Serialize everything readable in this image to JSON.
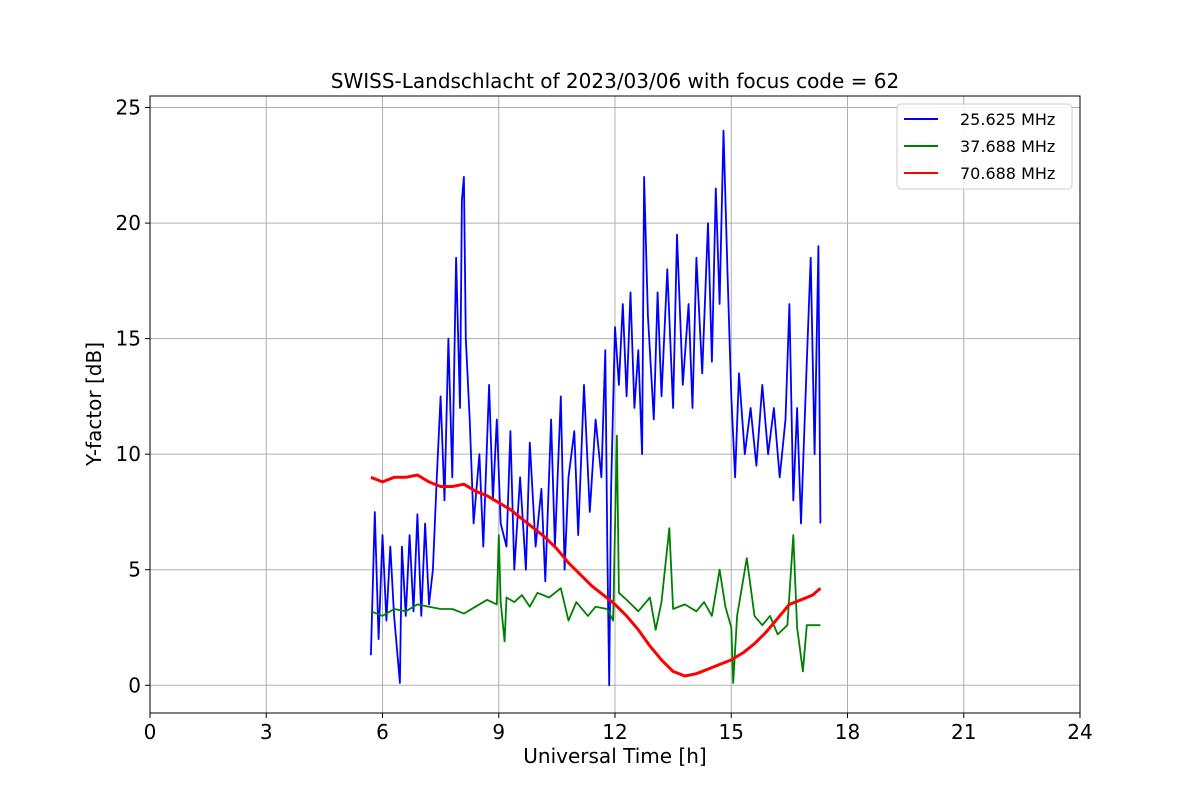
{
  "chart_data": {
    "type": "line",
    "title": "SWISS-Landschlacht of 2023/03/06 with focus code = 62",
    "xlabel": "Universal Time [h]",
    "ylabel": "Y-factor [dB]",
    "xlim": [
      0,
      24
    ],
    "ylim": [
      -1.2,
      25.5
    ],
    "xticks": [
      0,
      3,
      6,
      9,
      12,
      15,
      18,
      21,
      24
    ],
    "xtick_labels": [
      "0",
      "3",
      "6",
      "9",
      "12",
      "15",
      "18",
      "21",
      "24"
    ],
    "yticks": [
      0,
      5,
      10,
      15,
      20,
      25
    ],
    "ytick_labels": [
      "0",
      "5",
      "10",
      "15",
      "20",
      "25"
    ],
    "grid": true,
    "legend_position": "top-right",
    "series": [
      {
        "name": "25.625 MHz",
        "color": "#0000ff",
        "points": [
          [
            5.7,
            1.3
          ],
          [
            5.8,
            7.5
          ],
          [
            5.9,
            2.0
          ],
          [
            6.0,
            6.5
          ],
          [
            6.1,
            2.8
          ],
          [
            6.2,
            6.0
          ],
          [
            6.3,
            3.0
          ],
          [
            6.45,
            0.1
          ],
          [
            6.5,
            6.0
          ],
          [
            6.6,
            3.0
          ],
          [
            6.7,
            6.5
          ],
          [
            6.8,
            3.2
          ],
          [
            6.9,
            7.4
          ],
          [
            7.0,
            3.0
          ],
          [
            7.1,
            7.0
          ],
          [
            7.2,
            3.5
          ],
          [
            7.3,
            5.0
          ],
          [
            7.4,
            9.0
          ],
          [
            7.5,
            12.5
          ],
          [
            7.6,
            8.0
          ],
          [
            7.7,
            15.0
          ],
          [
            7.8,
            9.0
          ],
          [
            7.9,
            18.5
          ],
          [
            8.0,
            12.0
          ],
          [
            8.05,
            21.0
          ],
          [
            8.1,
            22.0
          ],
          [
            8.15,
            15.0
          ],
          [
            8.25,
            11.5
          ],
          [
            8.35,
            7.0
          ],
          [
            8.5,
            10.0
          ],
          [
            8.6,
            6.0
          ],
          [
            8.75,
            13.0
          ],
          [
            8.85,
            8.0
          ],
          [
            8.95,
            11.5
          ],
          [
            9.05,
            7.0
          ],
          [
            9.2,
            6.0
          ],
          [
            9.3,
            11.0
          ],
          [
            9.4,
            5.0
          ],
          [
            9.55,
            9.0
          ],
          [
            9.7,
            5.0
          ],
          [
            9.8,
            10.5
          ],
          [
            9.95,
            6.0
          ],
          [
            10.1,
            8.5
          ],
          [
            10.2,
            4.5
          ],
          [
            10.35,
            11.5
          ],
          [
            10.45,
            6.0
          ],
          [
            10.6,
            12.5
          ],
          [
            10.7,
            5.0
          ],
          [
            10.8,
            9.0
          ],
          [
            10.95,
            11.0
          ],
          [
            11.05,
            6.5
          ],
          [
            11.2,
            13.0
          ],
          [
            11.35,
            7.5
          ],
          [
            11.5,
            11.5
          ],
          [
            11.65,
            9.0
          ],
          [
            11.75,
            14.5
          ],
          [
            11.8,
            6.0
          ],
          [
            11.85,
            0.0
          ],
          [
            11.9,
            8.5
          ],
          [
            12.0,
            15.5
          ],
          [
            12.1,
            13.0
          ],
          [
            12.2,
            16.5
          ],
          [
            12.3,
            12.5
          ],
          [
            12.4,
            17.0
          ],
          [
            12.5,
            12.0
          ],
          [
            12.6,
            14.5
          ],
          [
            12.7,
            10.0
          ],
          [
            12.75,
            22.0
          ],
          [
            12.85,
            16.0
          ],
          [
            13.0,
            11.5
          ],
          [
            13.1,
            17.0
          ],
          [
            13.2,
            12.5
          ],
          [
            13.35,
            18.0
          ],
          [
            13.5,
            12.0
          ],
          [
            13.6,
            19.5
          ],
          [
            13.75,
            13.0
          ],
          [
            13.9,
            16.5
          ],
          [
            14.0,
            12.0
          ],
          [
            14.1,
            18.5
          ],
          [
            14.25,
            13.5
          ],
          [
            14.4,
            20.0
          ],
          [
            14.5,
            14.0
          ],
          [
            14.6,
            21.5
          ],
          [
            14.7,
            16.5
          ],
          [
            14.8,
            24.0
          ],
          [
            14.9,
            18.0
          ],
          [
            15.0,
            12.5
          ],
          [
            15.1,
            9.0
          ],
          [
            15.2,
            13.5
          ],
          [
            15.35,
            10.0
          ],
          [
            15.5,
            12.0
          ],
          [
            15.65,
            9.5
          ],
          [
            15.8,
            13.0
          ],
          [
            15.95,
            10.0
          ],
          [
            16.1,
            12.0
          ],
          [
            16.25,
            9.0
          ],
          [
            16.4,
            11.5
          ],
          [
            16.5,
            16.5
          ],
          [
            16.6,
            8.0
          ],
          [
            16.7,
            12.0
          ],
          [
            16.8,
            7.0
          ],
          [
            16.95,
            14.0
          ],
          [
            17.05,
            18.5
          ],
          [
            17.15,
            10.0
          ],
          [
            17.25,
            19.0
          ],
          [
            17.3,
            7.0
          ]
        ]
      },
      {
        "name": "37.688 MHz",
        "color": "#008000",
        "points": [
          [
            5.7,
            3.2
          ],
          [
            6.0,
            3.0
          ],
          [
            6.3,
            3.3
          ],
          [
            6.6,
            3.2
          ],
          [
            6.9,
            3.5
          ],
          [
            7.2,
            3.4
          ],
          [
            7.5,
            3.3
          ],
          [
            7.8,
            3.3
          ],
          [
            8.1,
            3.1
          ],
          [
            8.4,
            3.4
          ],
          [
            8.7,
            3.7
          ],
          [
            8.95,
            3.5
          ],
          [
            9.0,
            6.5
          ],
          [
            9.05,
            3.6
          ],
          [
            9.15,
            1.9
          ],
          [
            9.2,
            3.8
          ],
          [
            9.4,
            3.6
          ],
          [
            9.6,
            3.9
          ],
          [
            9.8,
            3.4
          ],
          [
            10.0,
            4.0
          ],
          [
            10.3,
            3.8
          ],
          [
            10.6,
            4.2
          ],
          [
            10.8,
            2.8
          ],
          [
            11.0,
            3.6
          ],
          [
            11.3,
            3.0
          ],
          [
            11.5,
            3.4
          ],
          [
            11.8,
            3.3
          ],
          [
            11.95,
            2.8
          ],
          [
            12.05,
            10.8
          ],
          [
            12.1,
            4.0
          ],
          [
            12.3,
            3.7
          ],
          [
            12.6,
            3.2
          ],
          [
            12.9,
            3.8
          ],
          [
            13.05,
            2.4
          ],
          [
            13.2,
            3.6
          ],
          [
            13.4,
            6.8
          ],
          [
            13.5,
            3.3
          ],
          [
            13.8,
            3.5
          ],
          [
            14.1,
            3.2
          ],
          [
            14.3,
            3.6
          ],
          [
            14.5,
            3.0
          ],
          [
            14.7,
            5.0
          ],
          [
            14.85,
            3.4
          ],
          [
            15.0,
            2.5
          ],
          [
            15.05,
            0.1
          ],
          [
            15.15,
            3.0
          ],
          [
            15.4,
            5.5
          ],
          [
            15.6,
            3.0
          ],
          [
            15.8,
            2.6
          ],
          [
            16.0,
            3.0
          ],
          [
            16.2,
            2.2
          ],
          [
            16.45,
            2.6
          ],
          [
            16.6,
            6.5
          ],
          [
            16.7,
            2.5
          ],
          [
            16.85,
            0.6
          ],
          [
            16.95,
            2.6
          ],
          [
            17.3,
            2.6
          ]
        ]
      },
      {
        "name": "70.688 MHz",
        "color": "#ff0000",
        "points": [
          [
            5.7,
            9.0
          ],
          [
            6.0,
            8.8
          ],
          [
            6.3,
            9.0
          ],
          [
            6.6,
            9.0
          ],
          [
            6.9,
            9.1
          ],
          [
            7.2,
            8.8
          ],
          [
            7.5,
            8.6
          ],
          [
            7.8,
            8.6
          ],
          [
            8.1,
            8.7
          ],
          [
            8.4,
            8.4
          ],
          [
            8.7,
            8.2
          ],
          [
            9.0,
            7.9
          ],
          [
            9.3,
            7.6
          ],
          [
            9.6,
            7.2
          ],
          [
            9.9,
            6.8
          ],
          [
            10.2,
            6.4
          ],
          [
            10.5,
            5.9
          ],
          [
            10.8,
            5.3
          ],
          [
            11.1,
            4.8
          ],
          [
            11.4,
            4.3
          ],
          [
            11.7,
            3.9
          ],
          [
            12.0,
            3.5
          ],
          [
            12.3,
            3.0
          ],
          [
            12.6,
            2.4
          ],
          [
            12.9,
            1.7
          ],
          [
            13.2,
            1.1
          ],
          [
            13.5,
            0.6
          ],
          [
            13.8,
            0.4
          ],
          [
            14.1,
            0.5
          ],
          [
            14.4,
            0.7
          ],
          [
            14.7,
            0.9
          ],
          [
            15.0,
            1.1
          ],
          [
            15.3,
            1.4
          ],
          [
            15.6,
            1.8
          ],
          [
            15.9,
            2.3
          ],
          [
            16.2,
            2.9
          ],
          [
            16.5,
            3.5
          ],
          [
            16.8,
            3.7
          ],
          [
            17.1,
            3.9
          ],
          [
            17.3,
            4.2
          ]
        ]
      }
    ]
  }
}
